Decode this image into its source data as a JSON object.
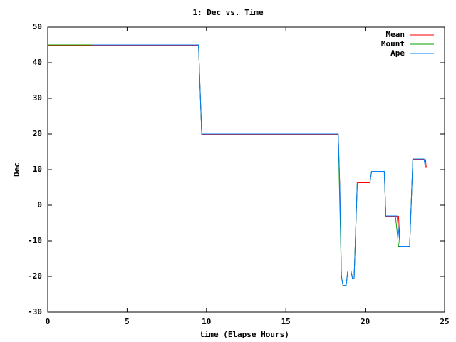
{
  "chart_data": {
    "type": "line",
    "title": "1: Dec vs. Time",
    "x_label": "time (Elapse Hours)",
    "y_label": "Dec",
    "xlim": [
      0,
      25
    ],
    "xticks": [
      0,
      5,
      10,
      15,
      20,
      25
    ],
    "ylim": [
      -30,
      50
    ],
    "yticks": [
      -30,
      -20,
      -10,
      0,
      10,
      20,
      30,
      40,
      50
    ],
    "legend": "top-right",
    "series": [
      {
        "name": "Mean",
        "color": "#ff0000",
        "x": [
          0,
          9.5,
          9.7,
          18.3,
          18.4,
          18.5,
          18.6,
          18.8,
          18.9,
          19.1,
          19.2,
          19.3,
          19.5,
          20.3,
          20.4,
          21.2,
          21.3,
          22.1,
          22.2,
          22.8,
          23.0,
          23.8,
          23.85
        ],
        "values": [
          44.8,
          44.8,
          19.8,
          19.8,
          5,
          -20,
          -22.5,
          -22.5,
          -18.5,
          -18.5,
          -20.5,
          -20.5,
          6.3,
          6.3,
          9.5,
          9.5,
          -3.1,
          -3.1,
          -11.5,
          -11.5,
          12.8,
          12.8,
          10.5
        ]
      },
      {
        "name": "Mount",
        "color": "#00a000",
        "x": [
          0,
          9.5,
          9.7,
          18.3,
          18.35,
          18.4,
          18.5,
          18.6,
          18.8,
          18.9,
          19.1,
          19.2,
          19.3,
          19.5,
          20.3,
          20.4,
          21.2,
          21.3,
          21.9,
          22.0,
          22.1,
          22.8,
          23.0,
          23.7,
          23.8
        ],
        "values": [
          45,
          45,
          20,
          20,
          10,
          0,
          -20,
          -22.5,
          -22.5,
          -18.5,
          -18.5,
          -20.5,
          -20.5,
          6.5,
          6.5,
          9.5,
          9.5,
          -3,
          -3,
          -7,
          -11.5,
          -11.5,
          13,
          13,
          10.5
        ]
      },
      {
        "name": "Ape",
        "color": "#0080ff",
        "x": [
          2.8,
          9.5,
          9.7,
          18.3,
          18.4,
          18.5,
          18.6,
          18.8,
          18.9,
          19.1,
          19.2,
          19.3,
          19.5,
          20.3,
          20.4,
          21.2,
          21.3,
          22.0,
          22.2,
          22.8,
          23.0,
          23.7,
          23.8
        ],
        "values": [
          45,
          45,
          20,
          20,
          5,
          -20,
          -22.5,
          -22.5,
          -18.5,
          -18.5,
          -20.5,
          -20.5,
          6.5,
          6.5,
          9.5,
          9.5,
          -3,
          -3,
          -11.5,
          -11.5,
          13,
          13,
          10.5
        ]
      }
    ]
  }
}
